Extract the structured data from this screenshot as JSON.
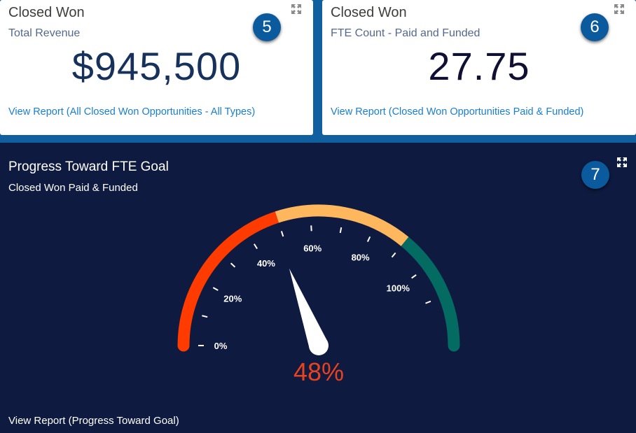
{
  "card5": {
    "title": "Closed Won",
    "subtitle": "Total Revenue",
    "metric": "$945,500",
    "link": "View Report (All Closed Won Opportunities - All Types)",
    "badge": "5",
    "expand_icon": "expand-icon"
  },
  "card6": {
    "title": "Closed Won",
    "subtitle": "FTE Count - Paid and Funded",
    "metric": "27.75",
    "link": "View Report (Closed Won Opportunities Paid & Funded)",
    "badge": "6",
    "expand_icon": "expand-icon"
  },
  "gauge_panel": {
    "title": "Progress Toward FTE Goal",
    "subtitle": "Closed Won Paid & Funded",
    "link": "View Report (Progress Toward Goal)",
    "badge": "7",
    "expand_icon": "expand-icon",
    "value_label": "48%",
    "value": 48,
    "min": 0,
    "max": 125,
    "tick_labels": [
      {
        "text": "0%",
        "value": 0
      },
      {
        "text": "20%",
        "value": 20
      },
      {
        "text": "40%",
        "value": 40
      },
      {
        "text": "60%",
        "value": 60
      },
      {
        "text": "80%",
        "value": 80
      },
      {
        "text": "100%",
        "value": 100
      }
    ],
    "bands": [
      {
        "from": 0,
        "to": 50,
        "color": "#ff3b00"
      },
      {
        "from": 50,
        "to": 90,
        "color": "#ffb75d"
      },
      {
        "from": 90,
        "to": 125,
        "color": "#046b62"
      }
    ],
    "value_color": "#e8431c"
  },
  "colors": {
    "page_background": "#1060a0",
    "panel_background": "#0e1a3f",
    "link": "#1a7fd0",
    "badge": "#0b5a9e"
  }
}
